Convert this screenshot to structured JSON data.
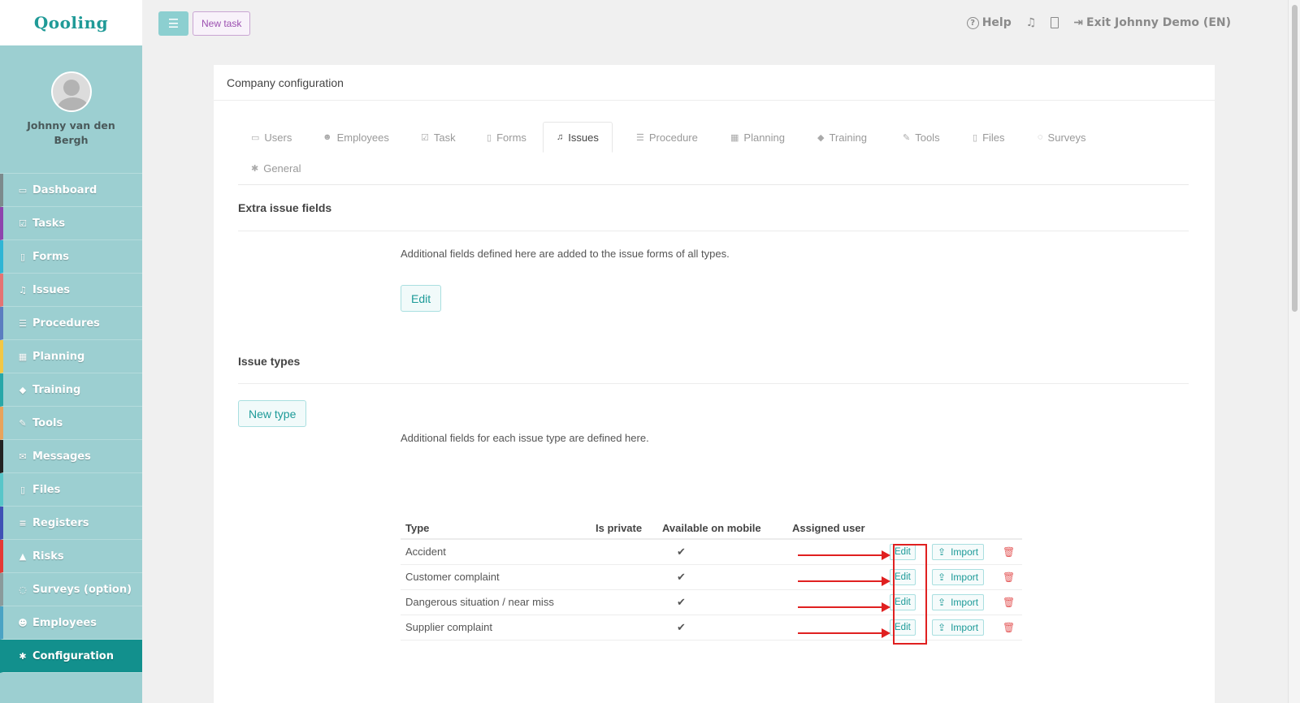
{
  "app": {
    "logo": "Qooling"
  },
  "profile": {
    "name": "Johnny van den Bergh"
  },
  "sidebar": {
    "items": [
      {
        "label": "Dashboard",
        "icon": "monitor-icon",
        "glyph": "▭",
        "color": "#7c8a8c"
      },
      {
        "label": "Tasks",
        "icon": "check-square-icon",
        "glyph": "☑",
        "color": "#8e44ad"
      },
      {
        "label": "Forms",
        "icon": "file-icon",
        "glyph": "▯",
        "color": "#2fb5d5"
      },
      {
        "label": "Issues",
        "icon": "bell-icon",
        "glyph": "♫",
        "color": "#e57373"
      },
      {
        "label": "Procedures",
        "icon": "list-icon",
        "glyph": "☰",
        "color": "#5b7dc0"
      },
      {
        "label": "Planning",
        "icon": "calendar-icon",
        "glyph": "▦",
        "color": "#f2c744"
      },
      {
        "label": "Training",
        "icon": "graduation-cap-icon",
        "glyph": "◆",
        "color": "#28a7a8"
      },
      {
        "label": "Tools",
        "icon": "wrench-icon",
        "glyph": "✎",
        "color": "#e8a35b"
      },
      {
        "label": "Messages",
        "icon": "envelope-icon",
        "glyph": "✉",
        "color": "#222222"
      },
      {
        "label": "Files",
        "icon": "files-icon",
        "glyph": "▯",
        "color": "#58c6c9"
      },
      {
        "label": "Registers",
        "icon": "registers-icon",
        "glyph": "≡",
        "color": "#3f51b5"
      },
      {
        "label": "Risks",
        "icon": "warning-icon",
        "glyph": "▲",
        "color": "#e53935"
      },
      {
        "label": "Surveys (option)",
        "icon": "comment-icon",
        "glyph": "◌",
        "color": "#8a9a9b"
      },
      {
        "label": "Employees",
        "icon": "users-icon",
        "glyph": "☻",
        "color": "#4aa3c4"
      },
      {
        "label": "Configuration",
        "icon": "gear-icon",
        "glyph": "✱",
        "color": "#12908d"
      }
    ]
  },
  "topbar": {
    "new_task": "New task",
    "help": "Help",
    "exit": "Exit Johnny Demo (EN)"
  },
  "card": {
    "title": "Company configuration"
  },
  "tabs": [
    {
      "label": "Users",
      "icon": "id-card-icon",
      "glyph": "▭"
    },
    {
      "label": "Employees",
      "icon": "users-icon",
      "glyph": "☻"
    },
    {
      "label": "Task",
      "icon": "check-square-icon",
      "glyph": "☑"
    },
    {
      "label": "Forms",
      "icon": "file-icon",
      "glyph": "▯"
    },
    {
      "label": "Issues",
      "icon": "bell-icon",
      "glyph": "♫"
    },
    {
      "label": "Procedure",
      "icon": "list-icon",
      "glyph": "☰"
    },
    {
      "label": "Planning",
      "icon": "calendar-icon",
      "glyph": "▦"
    },
    {
      "label": "Training",
      "icon": "graduation-cap-icon",
      "glyph": "◆"
    },
    {
      "label": "Tools",
      "icon": "wrench-icon",
      "glyph": "✎"
    },
    {
      "label": "Files",
      "icon": "files-icon",
      "glyph": "▯"
    },
    {
      "label": "Surveys",
      "icon": "comment-icon",
      "glyph": "◌"
    },
    {
      "label": "General",
      "icon": "gear-icon",
      "glyph": "✱"
    }
  ],
  "extra_fields": {
    "title": "Extra issue fields",
    "description": "Additional fields defined here are added to the issue forms of all types.",
    "edit_label": "Edit"
  },
  "issue_types": {
    "title": "Issue types",
    "new_type_label": "New type",
    "description": "Additional fields for each issue type are defined here.",
    "columns": [
      "Type",
      "Is private",
      "Available on mobile",
      "Assigned user"
    ],
    "rows": [
      {
        "type": "Accident",
        "is_private": "",
        "mobile": "✔",
        "assigned_user": "",
        "edit": "Edit",
        "import": "Import"
      },
      {
        "type": "Customer complaint",
        "is_private": "",
        "mobile": "✔",
        "assigned_user": "",
        "edit": "Edit",
        "import": "Import"
      },
      {
        "type": "Dangerous situation / near miss",
        "is_private": "",
        "mobile": "✔",
        "assigned_user": "",
        "edit": "Edit",
        "import": "Import"
      },
      {
        "type": "Supplier complaint",
        "is_private": "",
        "mobile": "✔",
        "assigned_user": "",
        "edit": "Edit",
        "import": "Import"
      }
    ]
  },
  "colors": {
    "accent": "#1c9a98",
    "sidebar": "#9ccfd1",
    "annotation": "#e02020"
  }
}
